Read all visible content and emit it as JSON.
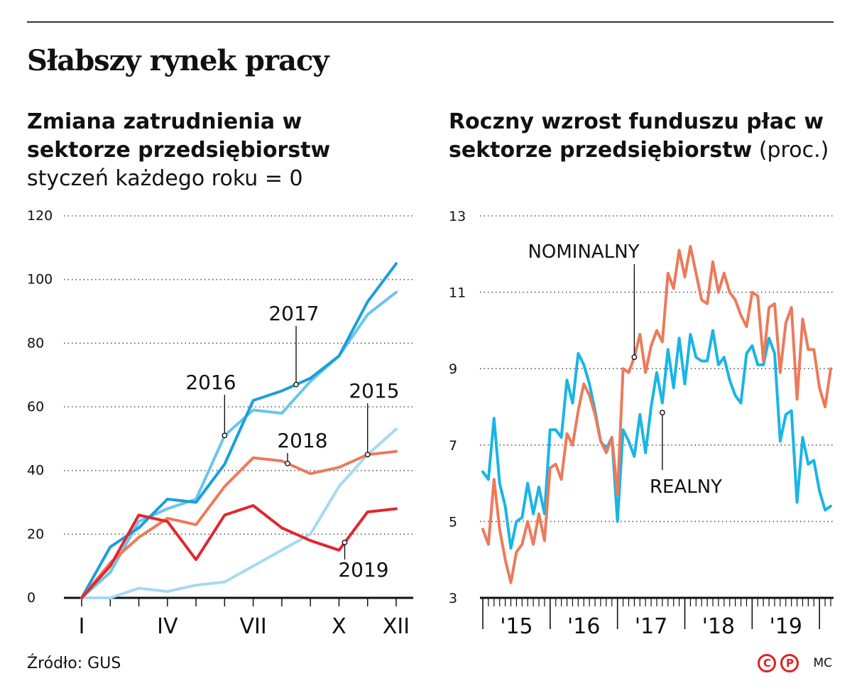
{
  "title": "Słabszy rynek pracy",
  "source": "Źródło: GUS",
  "credits": {
    "logo_letters": [
      "C",
      "P"
    ],
    "author": "MC"
  },
  "colors": {
    "y2015": "#a6d9f2",
    "y2016": "#6cc4ea",
    "y2017": "#1a9fdb",
    "y2018": "#ec7a5a",
    "y2019": "#e2262e",
    "nominal": "#ec7a5a",
    "real": "#19b5e5"
  },
  "chart_data": [
    {
      "type": "line",
      "title_bold": "Zmiana zatrudnienia w sektorze przedsiębiorstw",
      "title_light": "styczeń każdego roku = 0",
      "x": [
        1,
        2,
        3,
        4,
        5,
        6,
        7,
        8,
        9,
        10,
        11,
        12
      ],
      "x_tick_labels": [
        {
          "x": 1,
          "label": "I"
        },
        {
          "x": 4,
          "label": "IV"
        },
        {
          "x": 7,
          "label": "VII"
        },
        {
          "x": 10,
          "label": "X"
        },
        {
          "x": 12,
          "label": "XII"
        }
      ],
      "ylim": [
        0,
        120
      ],
      "y_ticks": [
        0,
        20,
        40,
        60,
        80,
        100,
        120
      ],
      "grid": "horizontal dotted",
      "series": [
        {
          "name": "2015",
          "color_key": "y2015",
          "values": [
            0,
            0,
            3,
            2,
            4,
            5,
            10,
            15,
            20,
            35,
            45,
            53
          ],
          "label_at": 11
        },
        {
          "name": "2016",
          "color_key": "y2016",
          "values": [
            0,
            8,
            24,
            28,
            31,
            51,
            59,
            58,
            68,
            76,
            89,
            96
          ],
          "label_at": 6
        },
        {
          "name": "2017",
          "color_key": "y2017",
          "values": [
            0,
            16,
            22,
            31,
            30,
            42,
            62,
            65,
            69,
            76,
            93,
            105
          ],
          "label_at": 8.5
        },
        {
          "name": "2018",
          "color_key": "y2018",
          "values": [
            0,
            11,
            19,
            25,
            23,
            35,
            44,
            43,
            39,
            41,
            45,
            46
          ],
          "label_at": 8.2
        },
        {
          "name": "2019",
          "color_key": "y2019",
          "values": [
            0,
            10,
            26,
            24,
            12,
            26,
            29,
            22,
            18,
            15,
            27,
            28
          ],
          "label_at": 10.2
        }
      ]
    },
    {
      "type": "line",
      "title_bold": "Roczny wzrost funduszu płac w sektorze przedsiębiorstw",
      "title_light": "(proc.)",
      "x_start": "2015-01",
      "x_tick_labels": [
        "'15",
        "'16",
        "'17",
        "'18",
        "'19"
      ],
      "ylim": [
        3,
        13
      ],
      "y_ticks": [
        3,
        5,
        7,
        9,
        11,
        13
      ],
      "grid": "horizontal dotted",
      "series": [
        {
          "name": "NOMINALNY",
          "color_key": "nominal",
          "values": [
            4.8,
            4.4,
            6.1,
            4.8,
            4.0,
            3.4,
            4.2,
            4.4,
            5.0,
            4.4,
            5.2,
            4.5,
            6.4,
            6.5,
            6.1,
            7.3,
            7.0,
            7.9,
            8.6,
            8.3,
            7.8,
            7.1,
            6.8,
            7.2,
            5.7,
            9.0,
            8.9,
            9.3,
            9.9,
            8.9,
            9.6,
            10.0,
            9.7,
            11.5,
            11.1,
            12.1,
            11.4,
            12.2,
            11.5,
            10.8,
            10.7,
            11.8,
            11.0,
            11.5,
            11.0,
            10.8,
            10.4,
            10.1,
            11.0,
            10.9,
            9.2,
            10.6,
            10.7,
            8.9,
            10.2,
            10.6,
            8.2,
            10.3,
            9.5,
            9.5,
            8.5,
            8.0,
            9.0
          ]
        },
        {
          "name": "REALNY",
          "color_key": "real",
          "values": [
            6.3,
            6.1,
            7.7,
            6.0,
            5.4,
            4.3,
            5.0,
            5.1,
            6.0,
            5.2,
            5.9,
            5.2,
            7.4,
            7.4,
            7.2,
            8.7,
            8.1,
            9.4,
            9.1,
            8.6,
            7.9,
            7.1,
            6.9,
            7.2,
            5.0,
            7.4,
            7.1,
            6.7,
            7.8,
            6.8,
            8.0,
            8.9,
            8.1,
            9.5,
            8.5,
            9.8,
            8.6,
            9.9,
            9.3,
            9.2,
            9.2,
            10.0,
            9.1,
            9.3,
            8.7,
            8.3,
            8.1,
            9.4,
            9.6,
            9.1,
            9.1,
            9.8,
            9.4,
            7.1,
            7.8,
            7.9,
            5.5,
            7.2,
            6.5,
            6.6,
            5.8,
            5.3,
            5.4
          ]
        }
      ]
    }
  ]
}
